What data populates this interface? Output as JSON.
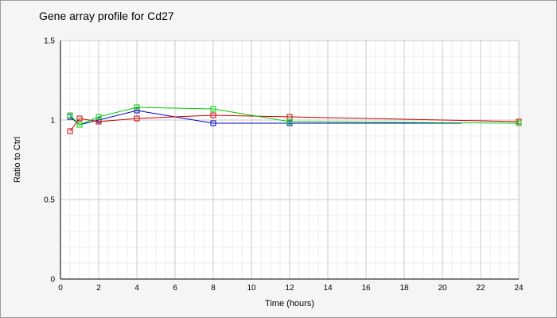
{
  "chart_data": {
    "type": "line",
    "title": "Gene array profile for Cd27",
    "xlabel": "Time (hours)",
    "ylabel": "Ratio to Ctrl",
    "xlim": [
      0,
      24
    ],
    "ylim": [
      0,
      1.5
    ],
    "x_ticks": [
      0,
      2,
      4,
      6,
      8,
      10,
      12,
      14,
      16,
      18,
      20,
      22,
      24
    ],
    "y_ticks": [
      0,
      0.5,
      1,
      1.5
    ],
    "y_tick_labels": [
      "0",
      "0.5",
      "1",
      "1.5"
    ],
    "grid": true,
    "legend": "none",
    "series": [
      {
        "color": "#0000cc",
        "x": [
          0.5,
          1,
          2,
          4,
          8,
          12,
          21
        ],
        "y": [
          1.02,
          0.97,
          1.0,
          1.06,
          0.98,
          0.98,
          0.98
        ],
        "markers": [
          true,
          true,
          true,
          true,
          true,
          true,
          false
        ]
      },
      {
        "color": "#cc0000",
        "x": [
          0.5,
          1,
          2,
          4,
          8,
          12,
          24
        ],
        "y": [
          0.93,
          1.01,
          0.99,
          1.01,
          1.03,
          1.02,
          0.99
        ],
        "markers": [
          true,
          true,
          true,
          true,
          true,
          true,
          true
        ]
      },
      {
        "color": "#00cc00",
        "x": [
          0.5,
          1,
          2,
          4,
          8,
          12,
          24
        ],
        "y": [
          1.03,
          0.97,
          1.02,
          1.08,
          1.07,
          0.99,
          0.98
        ],
        "markers": [
          true,
          true,
          true,
          true,
          true,
          true,
          true
        ]
      }
    ]
  }
}
